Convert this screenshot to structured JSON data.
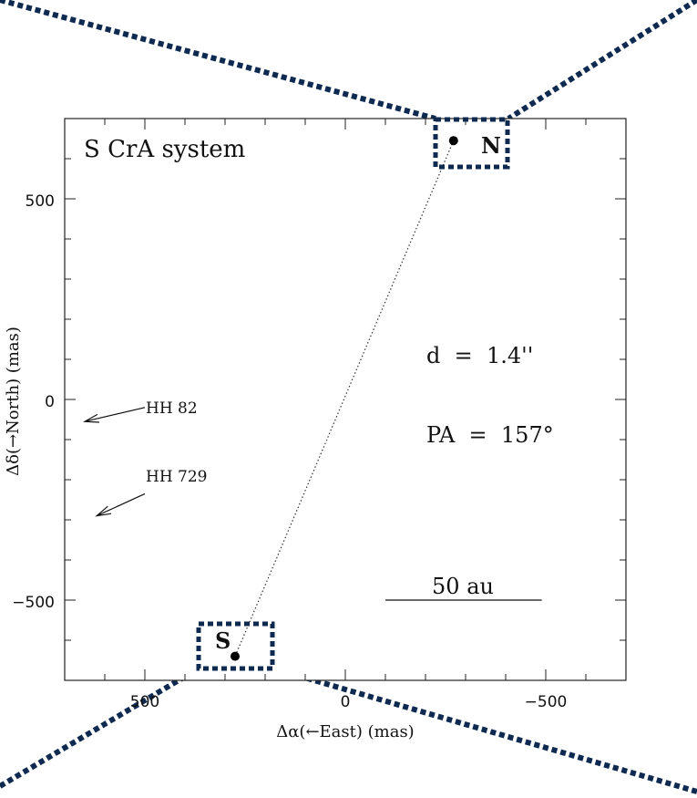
{
  "chart_data": {
    "type": "scatter",
    "title": "S CrA system",
    "xlabel": "Δα(←East) (mas)",
    "ylabel": "Δδ(→North) (mas)",
    "xlim": [
      700,
      -700
    ],
    "ylim": [
      -700,
      700
    ],
    "x_ticks": [
      500,
      0,
      -500
    ],
    "x_tick_labels": [
      "500",
      "0",
      "−500"
    ],
    "y_ticks": [
      500,
      0,
      -500
    ],
    "y_tick_labels": [
      "500",
      "0",
      "−500"
    ],
    "points": [
      {
        "label": "N",
        "x": -270,
        "y": 645
      },
      {
        "label": "S",
        "x": 275,
        "y": -640
      }
    ],
    "connector": "dotted",
    "annotations": {
      "separation": "d  =  1.4''",
      "position_angle": "PA  =  157°"
    },
    "outflows": [
      {
        "label": "HH 82",
        "from": [
          500,
          -20
        ],
        "to": [
          650,
          -55
        ]
      },
      {
        "label": "HH 729",
        "from": [
          500,
          -235
        ],
        "to": [
          620,
          -290
        ]
      }
    ],
    "scale_bar": {
      "label": "50 au",
      "from": -100,
      "to": -490,
      "y": -500
    },
    "highlight_color": "#0f2a50"
  }
}
